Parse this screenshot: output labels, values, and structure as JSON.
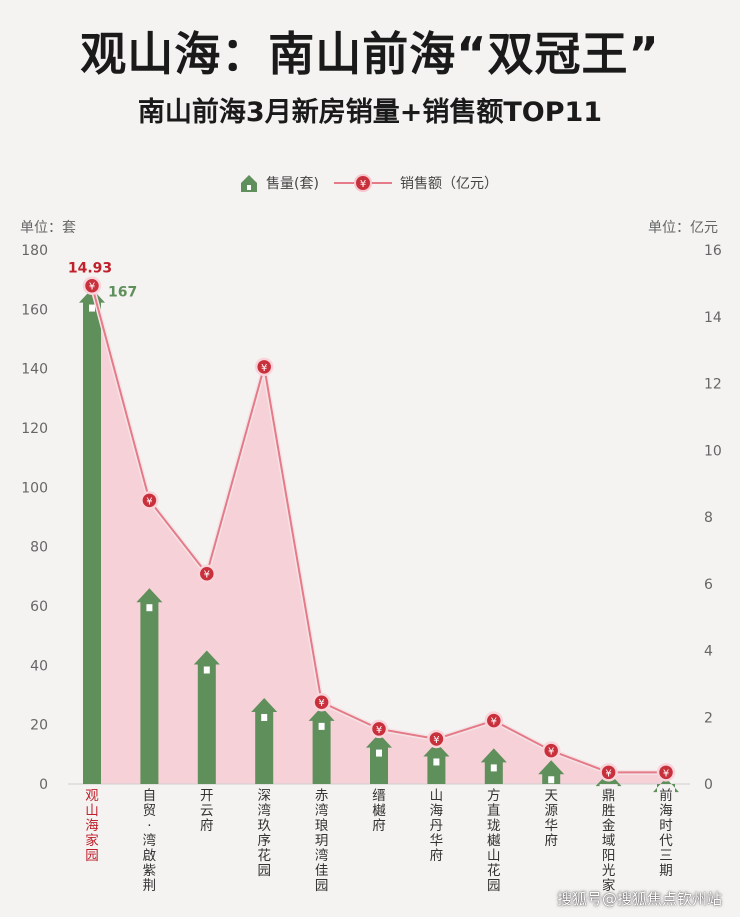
{
  "header": {
    "title": "观山海：南山前海“双冠王”",
    "subtitle": "南山前海3月新房销量+销售额TOP11"
  },
  "legend": {
    "volume_label": "售量(套)",
    "revenue_label": "销售额（亿元）"
  },
  "units": {
    "left": "单位：套",
    "right": "单位：亿元"
  },
  "watermark": "搜狐号@搜狐焦点钦州站",
  "colors": {
    "bar": "#5f8f5b",
    "line": "#e57a88",
    "marker": "#c8313c",
    "area": "#f7c6cf",
    "highlight_label": "#c0202c"
  },
  "chart_data": {
    "type": "bar",
    "categories": [
      "观山海家园",
      "自贸·湾啟紫荆",
      "开云府",
      "深湾玖序花园",
      "赤湾琅玥湾佳园",
      "缙樾府",
      "山海丹华府",
      "方直珑樾山花园",
      "天源华府",
      "鼎胜金域阳光家",
      "前海时代三期"
    ],
    "series": [
      {
        "name": "售量(套)",
        "type": "bar",
        "axis": "left",
        "values": [
          167,
          66,
          45,
          29,
          26,
          17,
          14,
          12,
          8,
          4,
          2
        ]
      },
      {
        "name": "销售额（亿元）",
        "type": "line",
        "axis": "right",
        "values": [
          14.93,
          8.5,
          6.3,
          12.5,
          2.45,
          1.65,
          1.35,
          1.9,
          1.0,
          0.35,
          0.35
        ]
      }
    ],
    "data_labels": {
      "bar_first": "167",
      "line_first": "14.93"
    },
    "y_left": {
      "min": 0,
      "max": 180,
      "ticks": [
        "0",
        "20",
        "40",
        "60",
        "80",
        "100",
        "120",
        "140",
        "160",
        "180"
      ]
    },
    "y_right": {
      "min": 0,
      "max": 16,
      "ticks": [
        "0",
        "2",
        "4",
        "6",
        "8",
        "10",
        "12",
        "14",
        "16"
      ]
    },
    "marker_symbol": "¥",
    "legend_position": "top-center",
    "grid": false
  }
}
